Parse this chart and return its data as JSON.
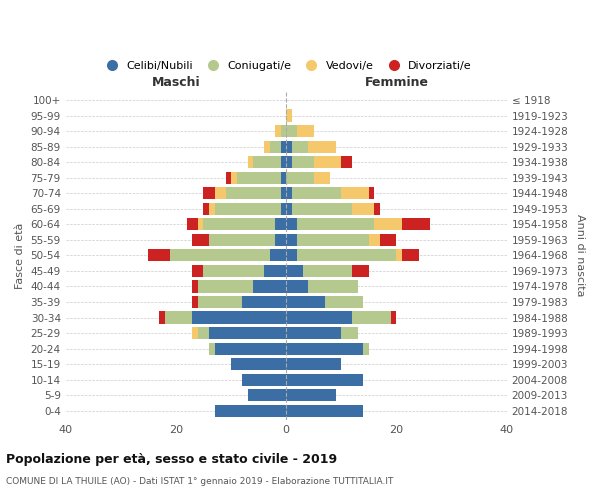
{
  "age_groups": [
    "0-4",
    "5-9",
    "10-14",
    "15-19",
    "20-24",
    "25-29",
    "30-34",
    "35-39",
    "40-44",
    "45-49",
    "50-54",
    "55-59",
    "60-64",
    "65-69",
    "70-74",
    "75-79",
    "80-84",
    "85-89",
    "90-94",
    "95-99",
    "100+"
  ],
  "birth_years": [
    "2014-2018",
    "2009-2013",
    "2004-2008",
    "1999-2003",
    "1994-1998",
    "1989-1993",
    "1984-1988",
    "1979-1983",
    "1974-1978",
    "1969-1973",
    "1964-1968",
    "1959-1963",
    "1954-1958",
    "1949-1953",
    "1944-1948",
    "1939-1943",
    "1934-1938",
    "1929-1933",
    "1924-1928",
    "1919-1923",
    "≤ 1918"
  ],
  "maschi": {
    "celibi": [
      13,
      7,
      8,
      10,
      13,
      14,
      17,
      8,
      6,
      4,
      3,
      2,
      2,
      1,
      1,
      1,
      1,
      1,
      0,
      0,
      0
    ],
    "coniugati": [
      0,
      0,
      0,
      0,
      1,
      2,
      5,
      8,
      10,
      11,
      18,
      12,
      13,
      12,
      10,
      8,
      5,
      2,
      1,
      0,
      0
    ],
    "vedovi": [
      0,
      0,
      0,
      0,
      0,
      1,
      0,
      0,
      0,
      0,
      0,
      0,
      1,
      1,
      2,
      1,
      1,
      1,
      1,
      0,
      0
    ],
    "divorziati": [
      0,
      0,
      0,
      0,
      0,
      0,
      1,
      1,
      1,
      2,
      4,
      3,
      2,
      1,
      2,
      1,
      0,
      0,
      0,
      0,
      0
    ]
  },
  "femmine": {
    "nubili": [
      14,
      9,
      14,
      10,
      14,
      10,
      12,
      7,
      4,
      3,
      2,
      2,
      2,
      1,
      1,
      0,
      1,
      1,
      0,
      0,
      0
    ],
    "coniugate": [
      0,
      0,
      0,
      0,
      1,
      3,
      7,
      7,
      9,
      9,
      18,
      13,
      14,
      11,
      9,
      5,
      4,
      3,
      2,
      0,
      0
    ],
    "vedove": [
      0,
      0,
      0,
      0,
      0,
      0,
      0,
      0,
      0,
      0,
      1,
      2,
      5,
      4,
      5,
      3,
      5,
      5,
      3,
      1,
      0
    ],
    "divorziate": [
      0,
      0,
      0,
      0,
      0,
      0,
      1,
      0,
      0,
      3,
      3,
      3,
      5,
      1,
      1,
      0,
      2,
      0,
      0,
      0,
      0
    ]
  },
  "colors": {
    "celibi_nubili": "#3a6ea5",
    "coniugati": "#b5c98e",
    "vedovi": "#f5c96b",
    "divorziati": "#cc2222"
  },
  "title": "Popolazione per età, sesso e stato civile - 2019",
  "subtitle": "COMUNE DI LA THUILE (AO) - Dati ISTAT 1° gennaio 2019 - Elaborazione TUTTITALIA.IT",
  "xlabel_left": "Maschi",
  "xlabel_right": "Femmine",
  "ylabel_left": "Fasce di età",
  "ylabel_right": "Anni di nascita",
  "xlim": 40,
  "background_color": "#ffffff",
  "grid_color": "#cccccc"
}
